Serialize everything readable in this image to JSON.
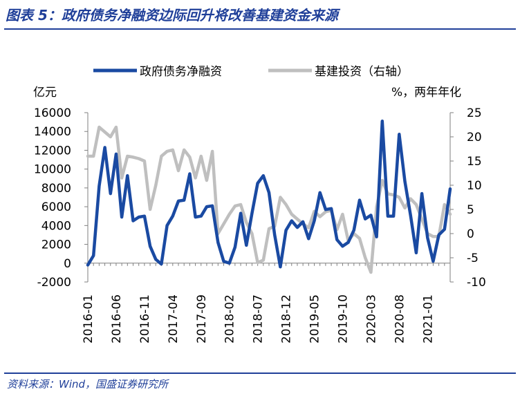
{
  "title": "图表 5：政府债务净融资边际回升将改善基建资金来源",
  "source": "资料来源：Wind，国盛证券研究所",
  "colors": {
    "navy": "#1f3f99",
    "primary_series": "#1a4aa2",
    "secondary_series": "#bfbfbf",
    "axis": "#7f7f7f"
  },
  "chart_data": {
    "type": "line",
    "title": "",
    "left_unit": "亿元",
    "right_unit": "%，两年年化",
    "y_left_range": [
      -2000,
      16000
    ],
    "y_left_ticks": [
      "-2000",
      "0",
      "2000",
      "4000",
      "6000",
      "8000",
      "10000",
      "12000",
      "14000",
      "16000"
    ],
    "y_right_range": [
      -10,
      25
    ],
    "y_right_ticks": [
      "-10",
      "-5",
      "0",
      "5",
      "10",
      "15",
      "20",
      "25"
    ],
    "x_tick_labels": [
      "2016-01",
      "2016-06",
      "2016-11",
      "2017-04",
      "2017-09",
      "2018-02",
      "2018-07",
      "2018-12",
      "2019-05",
      "2019-10",
      "2020-03",
      "2020-08",
      "2021-01"
    ],
    "x_tick_every": 5,
    "grid": false,
    "legend_position": "top",
    "series": [
      {
        "name": "政府债务净融资",
        "axis": "left",
        "values": [
          -200,
          800,
          8200,
          12300,
          7400,
          11600,
          4900,
          9300,
          4500,
          4900,
          5000,
          1800,
          400,
          -100,
          4000,
          5000,
          6600,
          6700,
          9500,
          4900,
          5000,
          6000,
          6100,
          2200,
          200,
          0,
          1700,
          5300,
          1900,
          5300,
          8500,
          9300,
          7500,
          3000,
          -400,
          3500,
          4500,
          3800,
          4400,
          2600,
          4500,
          7500,
          5700,
          5800,
          2500,
          1800,
          2200,
          3500,
          6700,
          4700,
          5100,
          2800,
          15100,
          5000,
          5000,
          13700,
          8700,
          5100,
          1100,
          7400,
          2700,
          200,
          3000,
          3600,
          7900
        ]
      },
      {
        "name": "基建投资（右轴）",
        "axis": "right",
        "values": [
          16,
          16,
          22,
          21,
          20,
          22,
          11.5,
          16,
          15.8,
          15.5,
          15,
          5,
          10,
          16,
          17,
          17.3,
          13,
          17.3,
          15.8,
          11.5,
          16,
          11,
          17,
          0,
          2,
          4,
          5.7,
          6,
          2.3,
          0,
          -6,
          -5.5,
          1,
          1.5,
          7.5,
          6,
          4,
          3,
          2,
          1.2,
          4.6,
          3.5,
          4.5,
          4.8,
          0.8,
          4,
          -1.5,
          0,
          -1,
          -5,
          -8,
          5.5,
          11,
          8.2,
          8,
          7.5,
          5.3,
          7.2,
          6,
          3,
          0,
          -0.6,
          -0.6,
          6,
          4
        ]
      }
    ]
  }
}
